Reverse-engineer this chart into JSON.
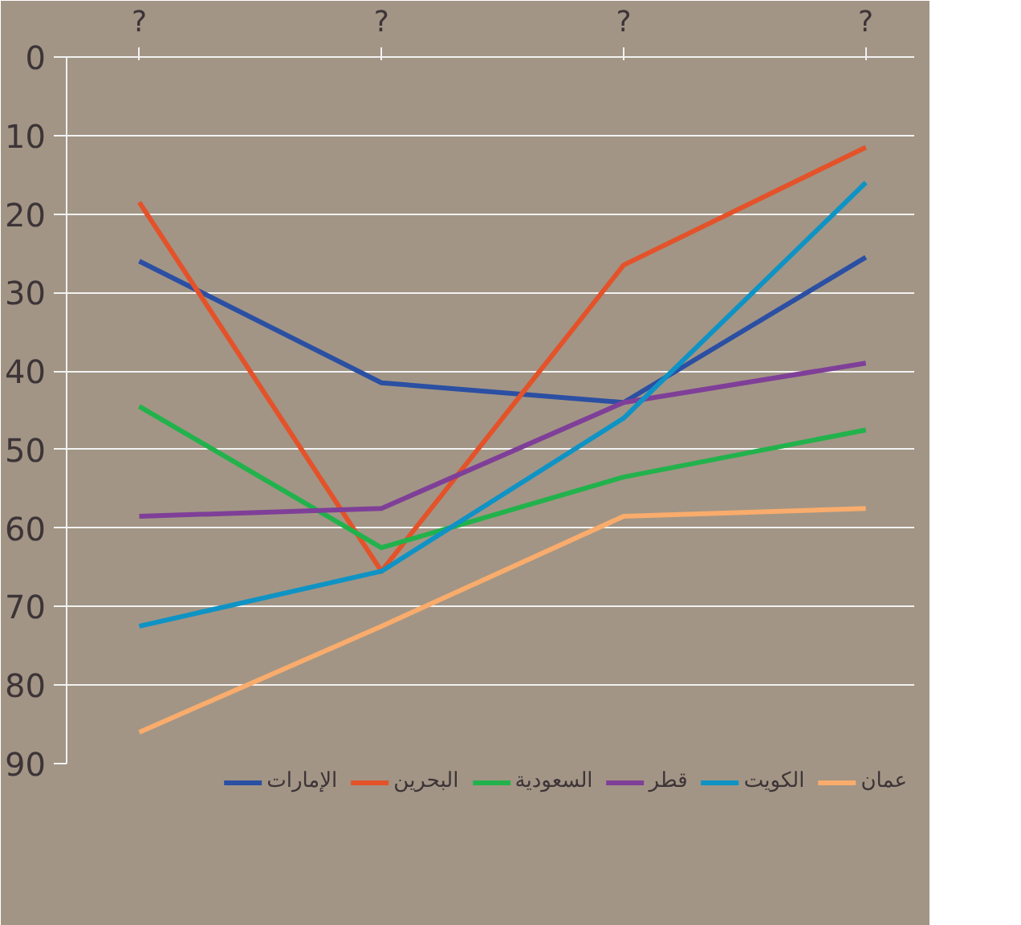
{
  "chart_data": {
    "type": "line",
    "categories": [
      "?",
      "?",
      "?",
      "?"
    ],
    "ylim": [
      90,
      0
    ],
    "yticks": [
      0,
      10,
      20,
      30,
      40,
      50,
      60,
      70,
      80,
      90
    ],
    "grid": "y",
    "legend": "bottom",
    "series": [
      {
        "name": "الإمارات",
        "color": "#2b4fa3",
        "values": [
          26,
          41.5,
          44,
          25.5
        ]
      },
      {
        "name": "البحرين",
        "color": "#e4522a",
        "values": [
          18.5,
          65.5,
          26.5,
          11.5
        ]
      },
      {
        "name": "السعودية",
        "color": "#22b24c",
        "values": [
          44.5,
          62.5,
          53.5,
          47.5
        ]
      },
      {
        "name": "قطر",
        "color": "#7f3f98",
        "values": [
          58.5,
          57.5,
          44,
          39
        ]
      },
      {
        "name": "الكويت",
        "color": "#0f93c4",
        "values": [
          72.5,
          65.5,
          46,
          16
        ]
      },
      {
        "name": "عمان",
        "color": "#f9ac6c",
        "values": [
          86,
          72.5,
          58.5,
          57.5
        ]
      }
    ]
  }
}
